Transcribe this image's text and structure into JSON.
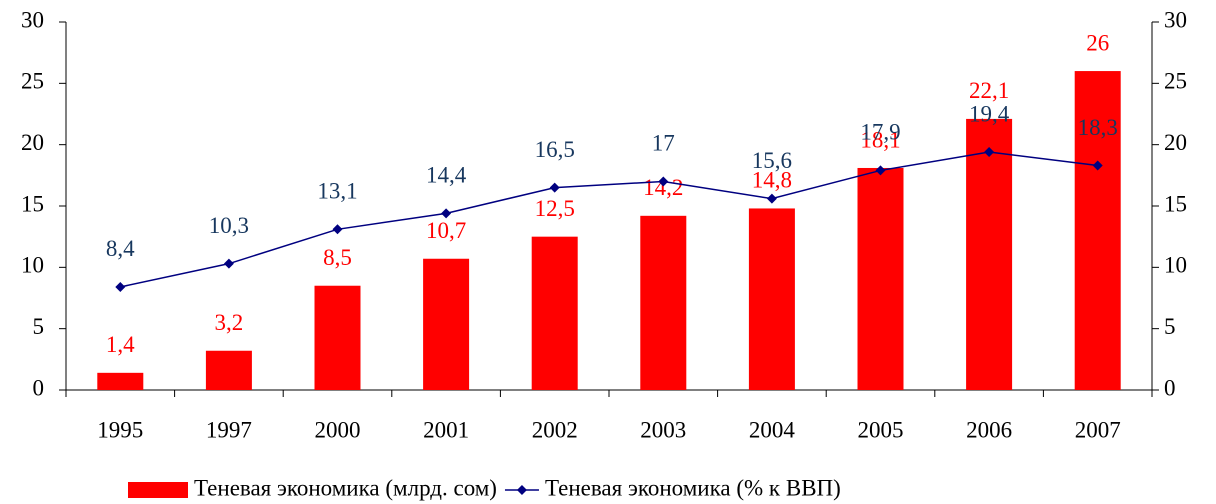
{
  "chart_data": {
    "type": "bar",
    "categories": [
      "1995",
      "1997",
      "2000",
      "2001",
      "2002",
      "2003",
      "2004",
      "2005",
      "2006",
      "2007"
    ],
    "series": [
      {
        "name": "Теневая экономика (млрд. сом)",
        "type": "bar",
        "color": "#ff0000",
        "label_color": "#ff0000",
        "values": [
          1.4,
          3.2,
          8.5,
          10.7,
          12.5,
          14.2,
          14.8,
          18.1,
          22.1,
          26
        ],
        "value_labels": [
          "1,4",
          "3,2",
          "8,5",
          "10,7",
          "12,5",
          "14,2",
          "14,8",
          "18,1",
          "22,1",
          "26"
        ]
      },
      {
        "name": "Теневая экономика (% к ВВП)",
        "type": "line",
        "axis": "y2",
        "color": "#000080",
        "label_color": "#17375e",
        "values": [
          8.4,
          10.3,
          13.1,
          14.4,
          16.5,
          17,
          15.6,
          17.9,
          19.4,
          18.3
        ],
        "value_labels": [
          "8,4",
          "10,3",
          "13,1",
          "14,4",
          "16,5",
          "17",
          "15,6",
          "17,9",
          "19,4",
          "18,3"
        ]
      }
    ],
    "ylim": [
      0,
      30
    ],
    "yticks": [
      0,
      5,
      10,
      15,
      20,
      25,
      30
    ],
    "y2lim": [
      0,
      30
    ],
    "y2ticks": [
      0,
      5,
      10,
      15,
      20,
      25,
      30
    ],
    "legend": "bottom"
  }
}
